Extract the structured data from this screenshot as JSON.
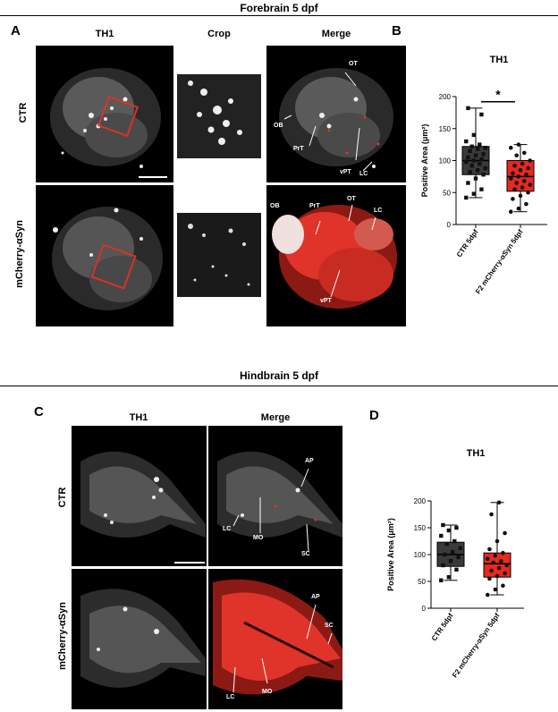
{
  "forebrain": {
    "title": "Forebrain 5 dpf",
    "panel_a": "A",
    "panel_b": "B",
    "col_heads": [
      "TH1",
      "Crop",
      "Merge"
    ],
    "rows": [
      "CTR",
      "mCherry-αSyn"
    ],
    "merge_labels_ctr": [
      "OT",
      "OB",
      "PrT",
      "vPT",
      "LC"
    ],
    "merge_labels_syn": [
      "OB",
      "PrT",
      "OT",
      "LC",
      "vPT"
    ]
  },
  "hindbrain": {
    "title": "Hindbrain 5 dpf",
    "panel_c": "C",
    "panel_d": "D",
    "col_heads": [
      "TH1",
      "Merge"
    ],
    "rows": [
      "CTR",
      "mCherry-αSyn"
    ],
    "merge_labels_ctr": [
      "AP",
      "LC",
      "MO",
      "SC"
    ],
    "merge_labels_syn": [
      "AP",
      "SC",
      "LC",
      "MO"
    ]
  },
  "colors": {
    "ctr": "#3a3a3a",
    "syn": "#e8291c",
    "crop_box": "#d8322a",
    "merge_red": "#e0342a"
  },
  "chart_data": [
    {
      "type": "box",
      "title": "TH1",
      "ylabel": "Positive Area (μm²)",
      "ylim": [
        0,
        200
      ],
      "yticks": [
        0,
        50,
        100,
        150,
        200
      ],
      "categories": [
        "CTR 5dpf",
        "F2 mCherry-αSyn 5dpf"
      ],
      "series": [
        {
          "name": "CTR 5dpf",
          "min": 42,
          "q1": 78,
          "median": 100,
          "q3": 122,
          "max": 182,
          "points": [
            42,
            48,
            55,
            65,
            72,
            78,
            82,
            85,
            88,
            92,
            95,
            98,
            100,
            102,
            105,
            108,
            110,
            115,
            118,
            120,
            122,
            125,
            130,
            140,
            172,
            182
          ]
        },
        {
          "name": "F2 mCherry-αSyn 5dpf",
          "min": 20,
          "q1": 52,
          "median": 75,
          "q3": 100,
          "max": 125,
          "points": [
            20,
            25,
            32,
            40,
            45,
            50,
            55,
            58,
            62,
            65,
            68,
            72,
            75,
            78,
            80,
            85,
            88,
            92,
            95,
            100,
            108,
            112,
            120,
            125
          ]
        }
      ],
      "significance": "*"
    },
    {
      "type": "box",
      "title": "TH1",
      "ylabel": "Positive Area (μm²)",
      "ylim": [
        0,
        200
      ],
      "yticks": [
        0,
        50,
        100,
        150,
        200
      ],
      "categories": [
        "CTR 5dpf",
        "F2 mCherry-αSyn 5dpf"
      ],
      "series": [
        {
          "name": "CTR 5dpf",
          "min": 52,
          "q1": 78,
          "median": 100,
          "q3": 123,
          "max": 155,
          "points": [
            52,
            58,
            72,
            80,
            88,
            95,
            100,
            105,
            112,
            120,
            125,
            135,
            145,
            150,
            155
          ]
        },
        {
          "name": "F2 mCherry-αSyn 5dpf",
          "min": 25,
          "q1": 58,
          "median": 83,
          "q3": 103,
          "max": 197,
          "points": [
            25,
            35,
            42,
            55,
            60,
            65,
            70,
            75,
            80,
            85,
            88,
            92,
            98,
            103,
            110,
            125,
            140,
            175,
            197
          ]
        }
      ]
    }
  ]
}
